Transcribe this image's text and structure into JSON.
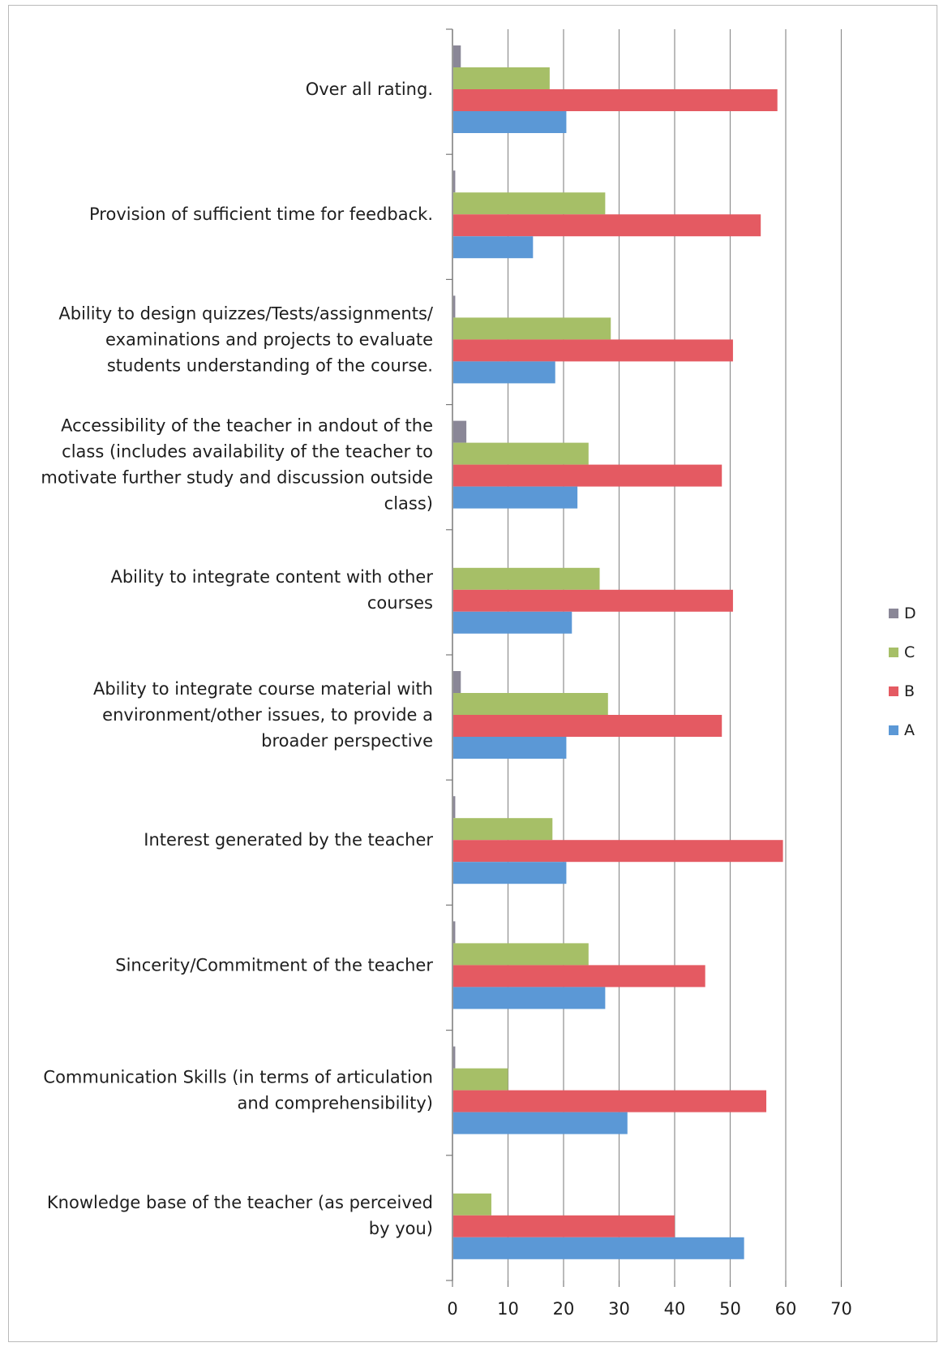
{
  "chart_data": {
    "type": "bar",
    "orientation": "horizontal",
    "title": "",
    "xlabel": "",
    "ylabel": "",
    "xlim": [
      0,
      70
    ],
    "x_ticks": [
      0,
      10,
      20,
      30,
      40,
      50,
      60,
      70
    ],
    "grid": "vertical",
    "legend_position": "right",
    "categories": [
      {
        "lines": [
          "Over all rating."
        ]
      },
      {
        "lines": [
          "Provision of sufficient time for feedback."
        ]
      },
      {
        "lines": [
          "Ability to design quizzes/Tests/assignments/",
          "examinations and projects to evaluate",
          "students understanding of the course."
        ]
      },
      {
        "lines": [
          "Accessibility of the teacher in andout  of  the",
          "class  (includes availability of  the  teacher to",
          "motivate further study and discussion outside",
          "class)"
        ]
      },
      {
        "lines": [
          "Ability to integrate  content  with  other",
          "courses"
        ]
      },
      {
        "lines": [
          "Ability to integrate course material with",
          "environment/other issues, to provide a",
          "broader perspective"
        ]
      },
      {
        "lines": [
          "Interest generated by the teacher"
        ]
      },
      {
        "lines": [
          "Sincerity/Commitment of the teacher"
        ]
      },
      {
        "lines": [
          "Communication Skills (in terms of articulation",
          "and comprehensibility)"
        ]
      },
      {
        "lines": [
          "Knowledge base of the teacher (as perceived",
          "by you)"
        ]
      }
    ],
    "series": [
      {
        "name": "D",
        "color": "#8a8797",
        "values": [
          1.5,
          0.5,
          0.5,
          2.5,
          0,
          1.5,
          0.5,
          0.5,
          0.5,
          0
        ]
      },
      {
        "name": "C",
        "color": "#a6bf67",
        "values": [
          17.5,
          27.5,
          28.5,
          24.5,
          26.5,
          28,
          18,
          24.5,
          10,
          7
        ]
      },
      {
        "name": "B",
        "color": "#e45a62",
        "values": [
          58.5,
          55.5,
          50.5,
          48.5,
          50.5,
          48.5,
          59.5,
          45.5,
          56.5,
          40
        ]
      },
      {
        "name": "A",
        "color": "#5b98d6",
        "values": [
          20.5,
          14.5,
          18.5,
          22.5,
          21.5,
          20.5,
          20.5,
          27.5,
          31.5,
          52.5
        ]
      }
    ]
  }
}
